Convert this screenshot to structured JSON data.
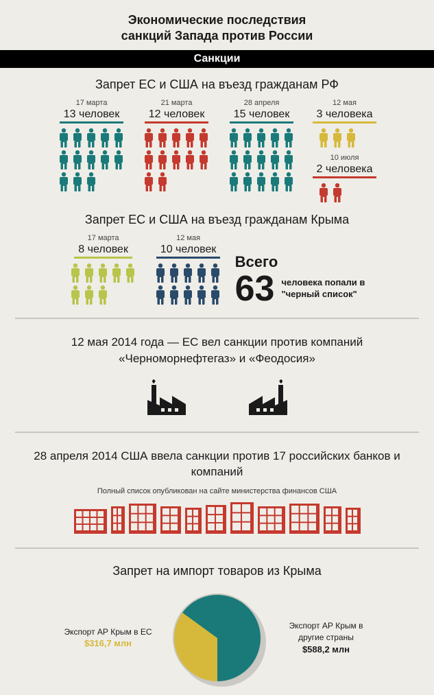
{
  "colors": {
    "background": "#efede8",
    "teal": "#1a7a7a",
    "red": "#c53a2e",
    "yellow": "#d6b93a",
    "navy": "#2a4a6a",
    "olive": "#b8c44a",
    "black": "#1a1a1a",
    "divider": "#c9c6be"
  },
  "title1": "Экономические последствия",
  "title2": "санкций Запада против России",
  "band": "Санкции",
  "section1": {
    "heading": "Запрет ЕС и США на въезд гражданам РФ",
    "groups": [
      {
        "date": "17 марта",
        "count": 13,
        "label": "13 человек",
        "color": "#1a7a7a",
        "perRow": 5
      },
      {
        "date": "21 марта",
        "count": 12,
        "label": "12 человек",
        "color": "#c53a2e",
        "perRow": 5
      },
      {
        "date": "28 апреля",
        "count": 15,
        "label": "15 человек",
        "color": "#1a7a7a",
        "perRow": 5
      },
      {
        "date": "12 мая",
        "count": 3,
        "label": "3 человека",
        "color": "#d6b93a",
        "perRow": 4
      },
      {
        "date": "10 июля",
        "count": 2,
        "label": "2 человека",
        "color": "#c53a2e",
        "perRow": 4
      }
    ]
  },
  "section2": {
    "heading": "Запрет ЕС и США на въезд гражданам Крыма",
    "groups": [
      {
        "date": "17 марта",
        "count": 8,
        "label": "8 человек",
        "color": "#b8c44a",
        "perRow": 5
      },
      {
        "date": "12 мая",
        "count": 10,
        "label": "10 человек",
        "color": "#2a4a6a",
        "perRow": 5
      }
    ],
    "total_lead": "Всего",
    "total_num": "63",
    "total_tail1": "человека попали в",
    "total_tail2": "\"черный список\""
  },
  "section3": {
    "text": "12 мая 2014 года — ЕС вел санкции против компаний «Черноморнефтегаз» и «Феодосия»",
    "factory_color": "#1a1a1a"
  },
  "section4": {
    "text": "28 апреля 2014 США ввела санкции против  17 российских банков и компаний",
    "subtext": "Полный список опубликован на сайте министерства финансов США",
    "building_color": "#c53a2e",
    "buildings": [
      {
        "w": 48,
        "h": 36
      },
      {
        "w": 20,
        "h": 40
      },
      {
        "w": 40,
        "h": 44
      },
      {
        "w": 30,
        "h": 40
      },
      {
        "w": 24,
        "h": 38
      },
      {
        "w": 30,
        "h": 42
      },
      {
        "w": 34,
        "h": 46
      },
      {
        "w": 40,
        "h": 40
      },
      {
        "w": 44,
        "h": 44
      },
      {
        "w": 26,
        "h": 40
      },
      {
        "w": 22,
        "h": 38
      }
    ]
  },
  "section5": {
    "heading": "Запрет на  импорт товаров из Крыма",
    "left_label": "Экспорт АР Крым в ЕС",
    "left_amount": "$316,7 млн",
    "left_color": "#d6b93a",
    "right_label": "Экспорт АР Крым в другие страны",
    "right_amount": "$588,2 млн",
    "right_color": "#1a7a7a",
    "pie": {
      "slice1": {
        "color": "#d6b93a",
        "value": 316.7
      },
      "slice2": {
        "color": "#1a7a7a",
        "value": 588.2
      },
      "slice1_deg": 126,
      "border_color": "#c9c6be"
    }
  }
}
